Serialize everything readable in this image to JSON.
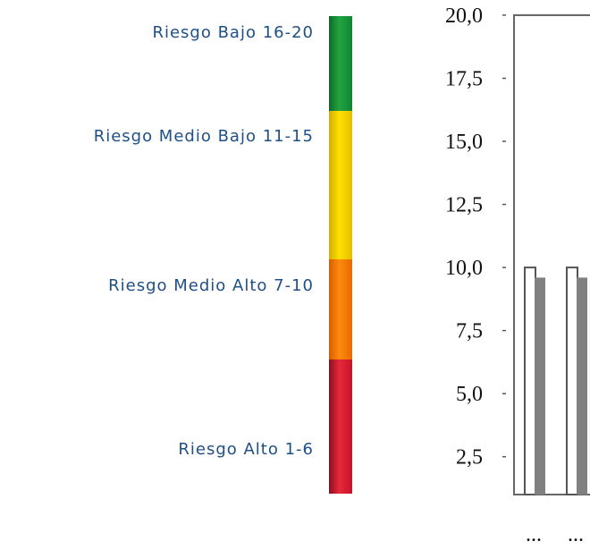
{
  "legend": {
    "items": [
      {
        "label": "Riesgo Bajo 16-20",
        "color": "#22a543"
      },
      {
        "label": "Riesgo Medio Bajo 11-15",
        "color": "#ffe000"
      },
      {
        "label": "Riesgo Medio Alto 7-10",
        "color": "#ff8a0e"
      },
      {
        "label": "Riesgo Alto 1-6",
        "color": "#e8283a"
      }
    ]
  },
  "chart_data": {
    "type": "bar",
    "categories": [
      "...",
      "..."
    ],
    "series": [
      {
        "values": [
          10.0,
          10.0
        ],
        "color": "#ffffff"
      },
      {
        "values": [
          9.6,
          9.6
        ],
        "color": "#808080"
      }
    ],
    "ylim": [
      1.0,
      20.0
    ],
    "ytick_values": [
      20.0,
      17.5,
      15.0,
      12.5,
      10.0,
      7.5,
      5.0,
      2.5
    ],
    "ytick_labels": [
      "20,0",
      "17,5",
      "15,0",
      "12,5",
      "10,0",
      "7,5",
      "5,0",
      "2,5"
    ],
    "xlabel": "",
    "ylabel": "",
    "title": "",
    "grid": false
  }
}
